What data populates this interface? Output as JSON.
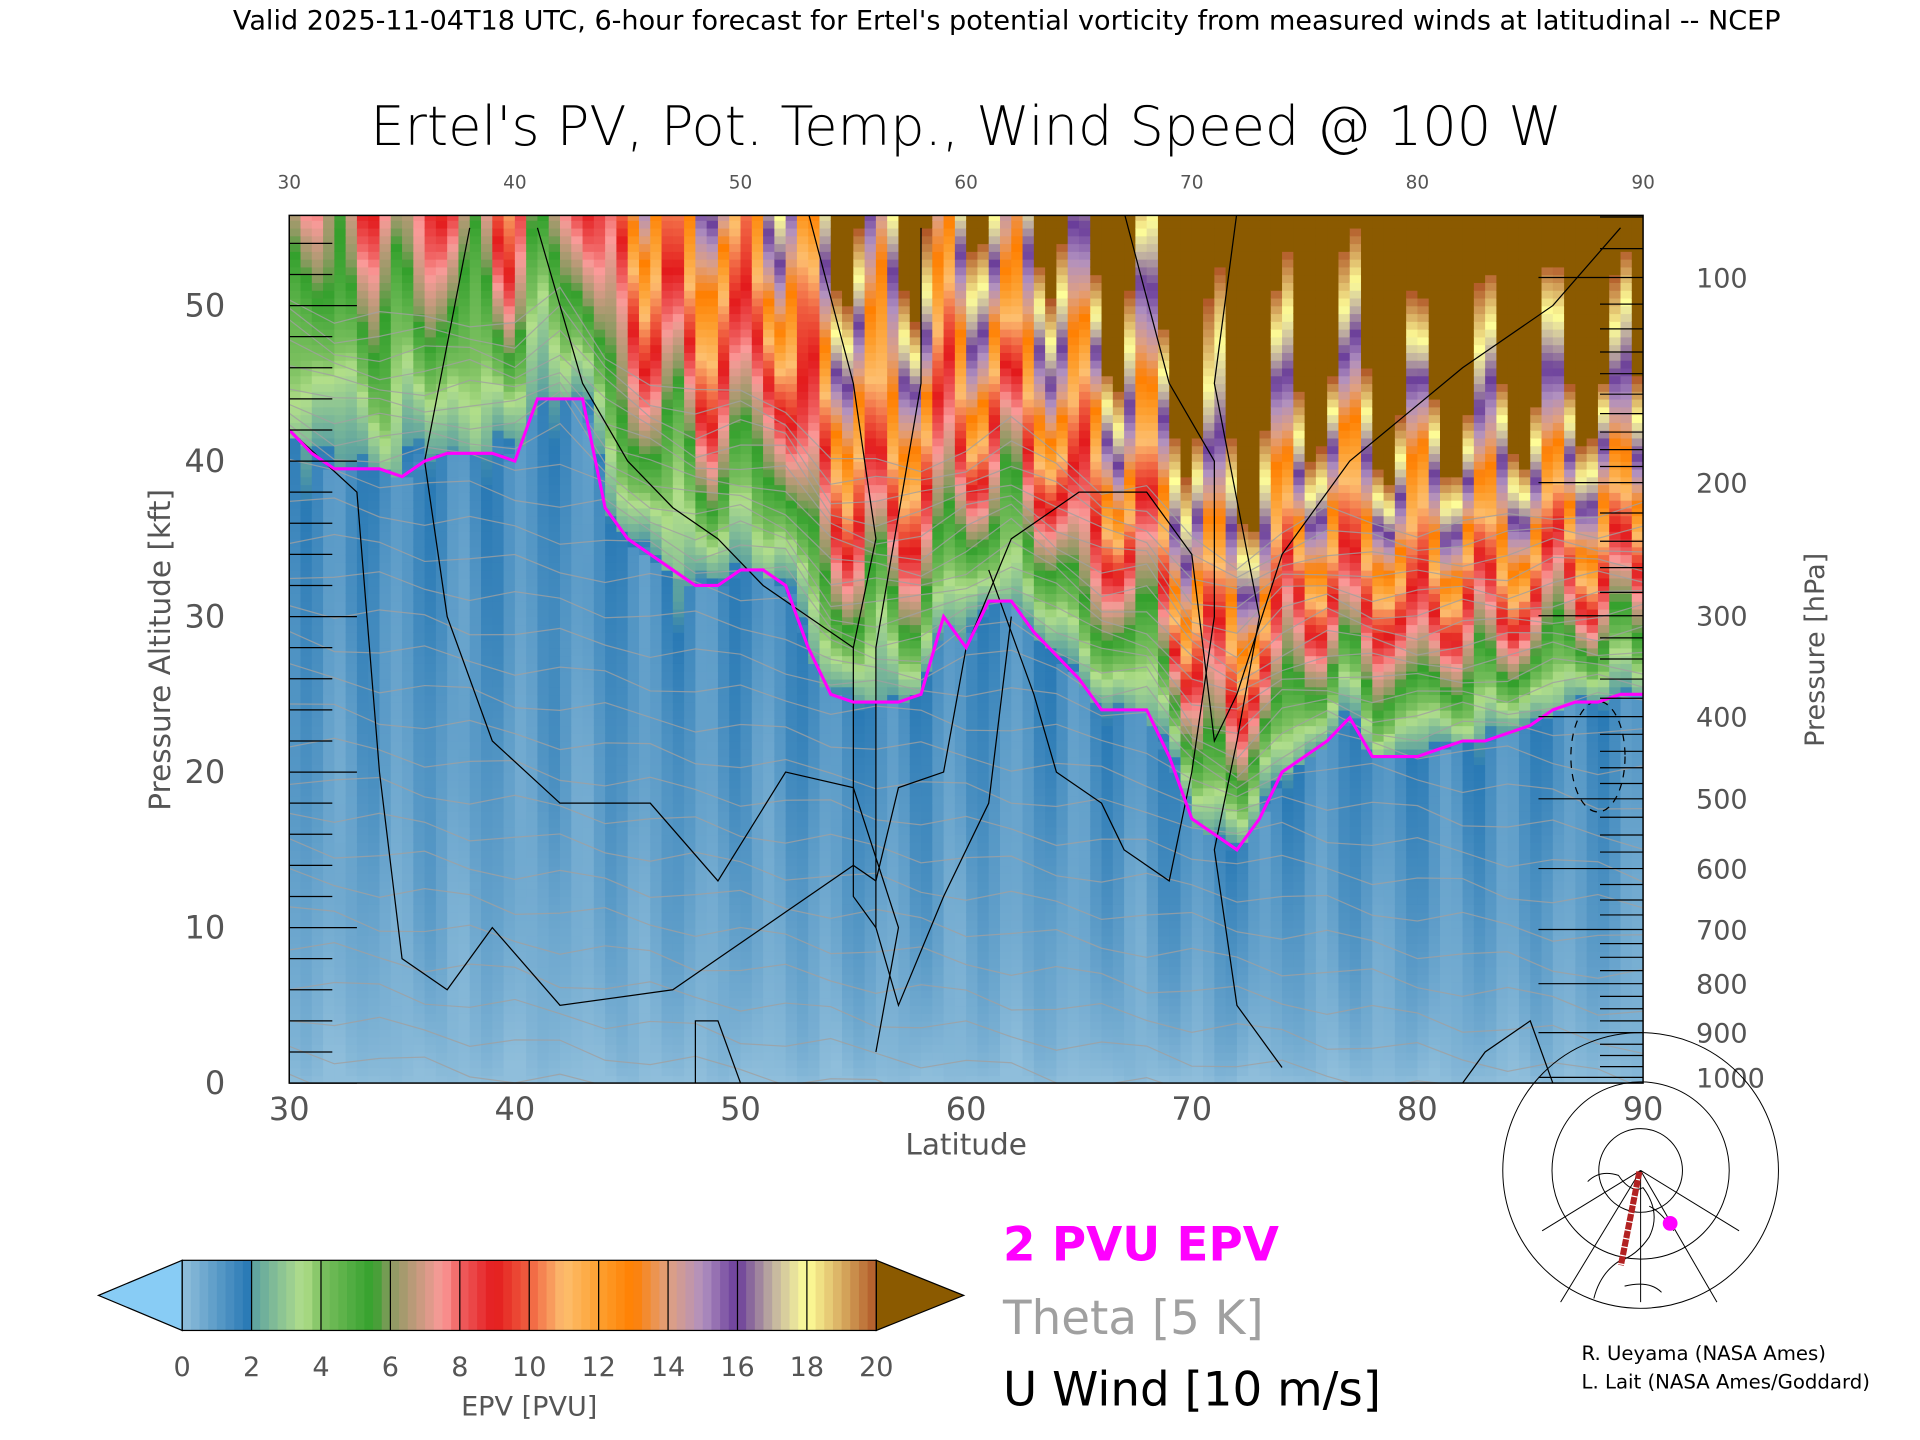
{
  "header": "Valid 2025-11-04T18 UTC, 6-hour forecast for Ertel's potential vorticity from measured winds at latitudinal -- NCEP",
  "chart_data": {
    "type": "heatmap",
    "title": "Ertel's PV, Pot. Temp., Wind Speed @ 100 W",
    "xlabel": "Latitude",
    "ylabel": "Pressure Altitude [kft]",
    "y2label": "Pressure [hPa]",
    "xlim": [
      30,
      90
    ],
    "ylim": [
      0,
      55.8
    ],
    "x_ticks": [
      "30",
      "40",
      "50",
      "60",
      "70",
      "80",
      "90"
    ],
    "x_tick_values": [
      30,
      40,
      50,
      60,
      70,
      80,
      90
    ],
    "y_ticks": [
      "0",
      "10",
      "20",
      "30",
      "40",
      "50"
    ],
    "y_tick_values": [
      0,
      10,
      20,
      30,
      40,
      50
    ],
    "y2_ticks": [
      "100",
      "200",
      "300",
      "400",
      "500",
      "600",
      "700",
      "800",
      "900",
      "1000"
    ],
    "y2_tick_values": [
      100,
      200,
      300,
      400,
      500,
      600,
      700,
      800,
      900,
      1000
    ],
    "pv_2pvu_height_kft": {
      "lat": [
        30,
        31,
        32,
        33,
        34,
        35,
        36,
        37,
        38,
        39,
        40,
        41,
        42,
        43,
        44,
        45,
        46,
        47,
        48,
        49,
        50,
        51,
        52,
        53,
        54,
        55,
        56,
        57,
        58,
        59,
        60,
        61,
        62,
        63,
        64,
        65,
        66,
        67,
        68,
        69,
        70,
        71,
        72,
        73,
        74,
        75,
        76,
        77,
        78,
        79,
        80,
        81,
        82,
        83,
        84,
        85,
        86,
        87,
        88,
        89,
        90
      ],
      "kft": [
        42,
        40.5,
        39.5,
        39.5,
        39.5,
        39,
        40,
        40.5,
        40.5,
        40.5,
        40,
        44,
        44,
        44,
        37,
        35,
        34,
        33,
        32,
        32,
        33,
        33,
        32,
        28,
        25,
        24.5,
        24.5,
        24.5,
        25,
        30,
        28,
        31,
        31,
        29,
        27.5,
        26,
        24,
        24,
        24,
        21,
        17,
        16,
        15,
        17,
        20,
        21,
        22,
        23.5,
        21,
        21,
        21,
        21.5,
        22,
        22,
        22.5,
        23,
        24,
        24.5,
        24.5,
        25,
        25
      ]
    },
    "colorbar": {
      "label": "EPV [PVU]",
      "ticks": [
        "0",
        "2",
        "4",
        "6",
        "8",
        "10",
        "12",
        "14",
        "16",
        "18",
        "20"
      ],
      "under_color": "#88ccf5",
      "over_color": "#8b5a00"
    },
    "legend": {
      "pv": "2 PVU EPV",
      "theta": "Theta [5 K]",
      "wind": "U Wind [10 m/s]",
      "pv_color": "#ff00ff",
      "theta_color": "#a0a0a0",
      "wind_color": "#000000"
    }
  },
  "credits": [
    "R. Ueyama (NASA Ames)",
    "L. Lait (NASA Ames/Goddard)"
  ]
}
